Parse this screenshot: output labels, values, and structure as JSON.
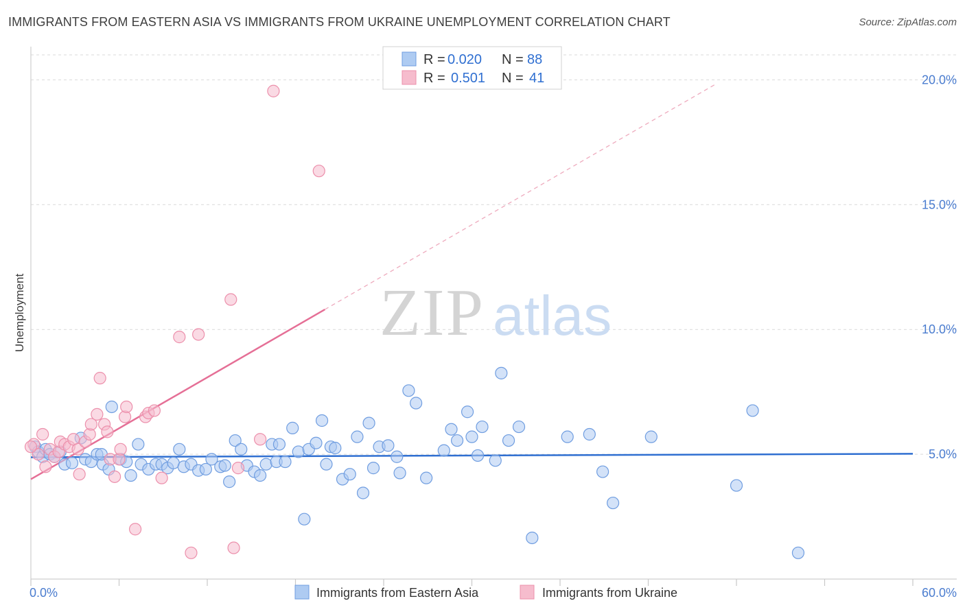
{
  "title": "IMMIGRANTS FROM EASTERN ASIA VS IMMIGRANTS FROM UKRAINE UNEMPLOYMENT CORRELATION CHART",
  "source": "Source: ZipAtlas.com",
  "colors": {
    "blue_fill": "#aecbf2",
    "blue_stroke": "#6f9de0",
    "blue_line": "#2f6fd1",
    "pink_fill": "#f6bccd",
    "pink_stroke": "#ec8fab",
    "pink_line": "#e56f96",
    "grid": "#d9d9d9",
    "axis_text": "#4a7ccf"
  },
  "chart_data": {
    "type": "scatter",
    "title": "IMMIGRANTS FROM EASTERN ASIA VS IMMIGRANTS FROM UKRAINE UNEMPLOYMENT CORRELATION CHART",
    "xlabel": "",
    "ylabel": "Unemployment",
    "xlim": [
      0,
      60
    ],
    "ylim": [
      0,
      21
    ],
    "x_tick_labels": [
      {
        "value": 0,
        "label": "0.0%"
      },
      {
        "value": 60,
        "label": "60.0%"
      }
    ],
    "y_ticks": [
      {
        "value": 5,
        "label": "5.0%"
      },
      {
        "value": 10,
        "label": "10.0%"
      },
      {
        "value": 15,
        "label": "15.0%"
      },
      {
        "value": 20,
        "label": "20.0%"
      }
    ],
    "legend": [
      {
        "name": "Immigrants from Eastern Asia",
        "r_label": "R =",
        "r_value": "0.020",
        "n_label": "N =",
        "n_value": "88"
      },
      {
        "name": "Immigrants from Ukraine",
        "r_label": "R =",
        "r_value": "0.501",
        "n_label": "N =",
        "n_value": "41"
      }
    ],
    "watermark": {
      "zip": "ZIP",
      "atlas": "atlas"
    },
    "series": [
      {
        "name": "Immigrants from Eastern Asia",
        "trend": {
          "x0": 0,
          "y0": 4.88,
          "x1": 60,
          "y1": 5.02
        },
        "points": [
          [
            0.3,
            5.3
          ],
          [
            0.5,
            5.1
          ],
          [
            0.8,
            4.9
          ],
          [
            1.0,
            5.2
          ],
          [
            1.3,
            5.0
          ],
          [
            1.6,
            4.9
          ],
          [
            2.0,
            5.1
          ],
          [
            2.3,
            4.6
          ],
          [
            2.8,
            4.65
          ],
          [
            3.4,
            5.65
          ],
          [
            3.7,
            4.8
          ],
          [
            4.1,
            4.7
          ],
          [
            4.5,
            5.0
          ],
          [
            4.9,
            4.6
          ],
          [
            5.3,
            4.4
          ],
          [
            5.5,
            6.9
          ],
          [
            6.1,
            4.8
          ],
          [
            6.5,
            4.7
          ],
          [
            6.8,
            4.15
          ],
          [
            7.3,
            5.4
          ],
          [
            7.5,
            4.6
          ],
          [
            8.0,
            4.4
          ],
          [
            8.5,
            4.6
          ],
          [
            8.9,
            4.6
          ],
          [
            9.3,
            4.45
          ],
          [
            9.7,
            4.65
          ],
          [
            10.1,
            5.2
          ],
          [
            10.4,
            4.5
          ],
          [
            10.9,
            4.6
          ],
          [
            11.4,
            4.35
          ],
          [
            11.9,
            4.4
          ],
          [
            12.3,
            4.8
          ],
          [
            12.9,
            4.5
          ],
          [
            13.2,
            4.55
          ],
          [
            13.5,
            3.9
          ],
          [
            13.9,
            5.55
          ],
          [
            14.3,
            5.2
          ],
          [
            14.7,
            4.55
          ],
          [
            15.2,
            4.3
          ],
          [
            15.6,
            4.15
          ],
          [
            16.0,
            4.6
          ],
          [
            16.4,
            5.4
          ],
          [
            16.7,
            4.7
          ],
          [
            16.9,
            5.4
          ],
          [
            17.3,
            4.7
          ],
          [
            17.8,
            6.05
          ],
          [
            18.2,
            5.1
          ],
          [
            18.6,
            2.4
          ],
          [
            18.9,
            5.2
          ],
          [
            19.4,
            5.45
          ],
          [
            19.8,
            6.35
          ],
          [
            20.1,
            4.6
          ],
          [
            20.4,
            5.3
          ],
          [
            20.7,
            5.25
          ],
          [
            21.2,
            4.0
          ],
          [
            21.7,
            4.2
          ],
          [
            22.2,
            5.7
          ],
          [
            22.6,
            3.45
          ],
          [
            23.0,
            6.25
          ],
          [
            23.3,
            4.45
          ],
          [
            23.7,
            5.3
          ],
          [
            24.3,
            5.35
          ],
          [
            24.9,
            4.9
          ],
          [
            25.1,
            4.25
          ],
          [
            25.7,
            7.55
          ],
          [
            26.2,
            7.05
          ],
          [
            26.9,
            4.05
          ],
          [
            28.1,
            5.15
          ],
          [
            28.6,
            6.0
          ],
          [
            29.0,
            5.55
          ],
          [
            29.7,
            6.7
          ],
          [
            30.0,
            5.7
          ],
          [
            30.4,
            4.95
          ],
          [
            30.7,
            6.1
          ],
          [
            31.6,
            4.75
          ],
          [
            32.0,
            8.25
          ],
          [
            32.5,
            5.55
          ],
          [
            33.2,
            6.1
          ],
          [
            34.1,
            1.65
          ],
          [
            36.5,
            5.7
          ],
          [
            38.0,
            5.8
          ],
          [
            38.9,
            4.3
          ],
          [
            39.6,
            3.05
          ],
          [
            42.2,
            5.7
          ],
          [
            48.0,
            3.75
          ],
          [
            49.1,
            6.75
          ],
          [
            52.2,
            1.05
          ],
          [
            4.8,
            5.0
          ]
        ]
      },
      {
        "name": "Immigrants from Ukraine",
        "trend": {
          "x0": 0,
          "y0": 4.0,
          "x1": 20,
          "y1": 10.8,
          "dash_x1": 46.5,
          "dash_y1": 19.8
        },
        "points": [
          [
            0.2,
            5.4
          ],
          [
            0.5,
            5.0
          ],
          [
            0.8,
            5.8
          ],
          [
            1.0,
            4.5
          ],
          [
            1.3,
            5.2
          ],
          [
            1.6,
            4.9
          ],
          [
            1.9,
            5.1
          ],
          [
            2.0,
            5.5
          ],
          [
            2.3,
            5.4
          ],
          [
            2.6,
            5.3
          ],
          [
            2.9,
            5.6
          ],
          [
            3.2,
            5.2
          ],
          [
            3.3,
            4.2
          ],
          [
            3.7,
            5.5
          ],
          [
            4.0,
            5.8
          ],
          [
            4.1,
            6.2
          ],
          [
            4.5,
            6.6
          ],
          [
            4.7,
            8.05
          ],
          [
            5.0,
            6.2
          ],
          [
            5.2,
            5.9
          ],
          [
            5.4,
            4.8
          ],
          [
            5.7,
            4.1
          ],
          [
            6.0,
            4.8
          ],
          [
            6.1,
            5.2
          ],
          [
            6.4,
            6.5
          ],
          [
            6.5,
            6.9
          ],
          [
            7.1,
            2.0
          ],
          [
            7.8,
            6.5
          ],
          [
            8.0,
            6.65
          ],
          [
            8.4,
            6.75
          ],
          [
            8.9,
            4.05
          ],
          [
            10.1,
            9.7
          ],
          [
            10.9,
            1.05
          ],
          [
            11.4,
            9.8
          ],
          [
            13.6,
            11.2
          ],
          [
            13.8,
            1.25
          ],
          [
            14.1,
            4.45
          ],
          [
            15.6,
            5.6
          ],
          [
            16.5,
            19.55
          ],
          [
            19.6,
            16.35
          ],
          [
            0.0,
            5.3
          ]
        ]
      }
    ]
  }
}
